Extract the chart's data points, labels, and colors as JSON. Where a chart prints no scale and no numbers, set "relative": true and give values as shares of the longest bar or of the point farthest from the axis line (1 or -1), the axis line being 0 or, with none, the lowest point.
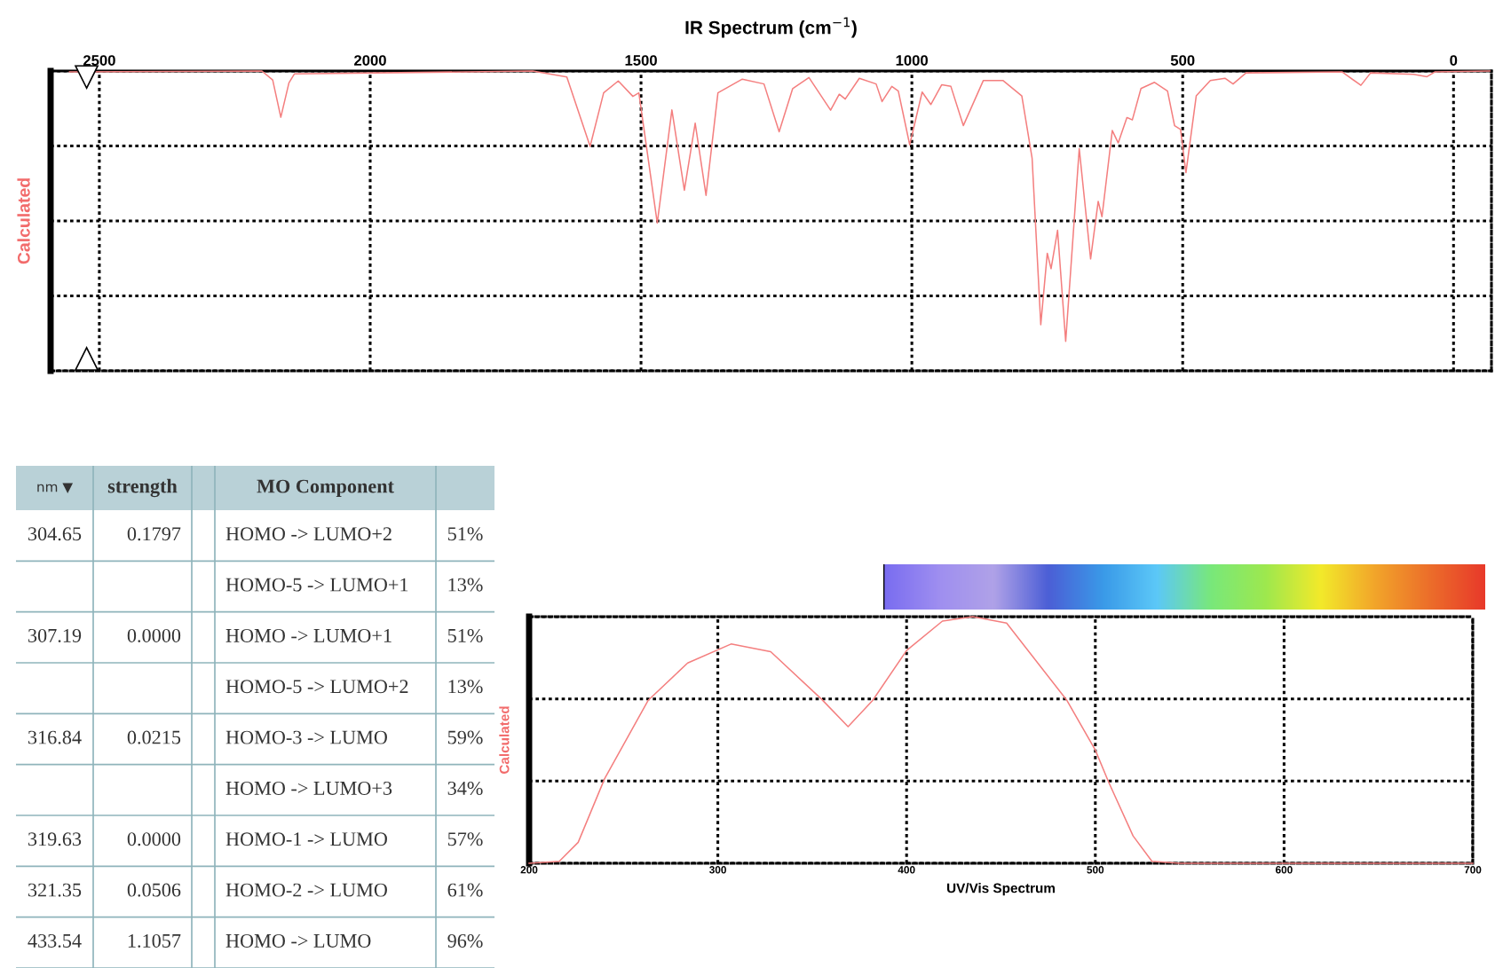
{
  "chart_data": [
    {
      "type": "line",
      "title": "IR Spectrum (cm$^{−1}$)",
      "ylabel": "Calculated",
      "relative": true,
      "grid": true,
      "tick_labels": "x",
      "xlim": [
        2590,
        -70
      ],
      "xticks": [
        2500,
        2000,
        1500,
        1000,
        500,
        0
      ],
      "x": [
        2555,
        2200,
        2180,
        2165,
        2150,
        2140,
        1700,
        1637,
        1594,
        1569,
        1542,
        1515,
        1504,
        1470,
        1443,
        1420,
        1400,
        1380,
        1358,
        1313,
        1273,
        1245,
        1220,
        1190,
        1150,
        1134,
        1123,
        1097,
        1066,
        1055,
        1037,
        1025,
        1004,
        981,
        965,
        945,
        928,
        905,
        868,
        832,
        797,
        778,
        762,
        750,
        743,
        731,
        716,
        691,
        670,
        656,
        649,
        630,
        619,
        603,
        593,
        577,
        552,
        528,
        515,
        504,
        494,
        475,
        449,
        422,
        407,
        383,
        206,
        171,
        153,
        74,
        49,
        34,
        -67
      ],
      "series": [
        {
          "color": "#f47f7f",
          "values": [
            -0.003,
            0,
            -0.033,
            -0.171,
            -0.044,
            -0.011,
            0,
            -0.022,
            -0.279,
            -0.081,
            -0.037,
            -0.094,
            -0.081,
            -0.562,
            -0.144,
            -0.441,
            -0.193,
            -0.46,
            -0.081,
            -0.03,
            -0.048,
            -0.225,
            -0.065,
            -0.024,
            -0.145,
            -0.086,
            -0.104,
            -0.027,
            -0.048,
            -0.113,
            -0.057,
            -0.074,
            -0.273,
            -0.078,
            -0.124,
            -0.051,
            -0.057,
            -0.202,
            -0.035,
            -0.035,
            -0.092,
            -0.323,
            -0.938,
            -0.674,
            -0.731,
            -0.589,
            -1.0,
            -0.287,
            -0.695,
            -0.482,
            -0.539,
            -0.22,
            -0.266,
            -0.172,
            -0.181,
            -0.065,
            -0.042,
            -0.074,
            -0.202,
            -0.216,
            -0.376,
            -0.092,
            -0.035,
            -0.027,
            -0.048,
            -0.007,
            -0.003,
            -0.053,
            -0.007,
            -0.012,
            -0.021,
            -0.003,
            0
          ]
        }
      ]
    },
    {
      "type": "other",
      "categories": [
        "nm ▼",
        "strength",
        null,
        "MO Component",
        null
      ],
      "cell_labels": [
        [
          "304.65",
          "0.1797",
          null,
          "HOMO -> LUMO+2",
          "51%"
        ],
        [
          null,
          null,
          null,
          "HOMO-5 -> LUMO+1",
          "13%"
        ],
        [
          "307.19",
          "0.0000",
          null,
          "HOMO -> LUMO+1",
          "51%"
        ],
        [
          null,
          null,
          null,
          "HOMO-5 -> LUMO+2",
          "13%"
        ],
        [
          "316.84",
          "0.0215",
          null,
          "HOMO-3 -> LUMO",
          "59%"
        ],
        [
          null,
          null,
          null,
          "HOMO -> LUMO+3",
          "34%"
        ],
        [
          "319.63",
          "0.0000",
          null,
          "HOMO-1 -> LUMO",
          "57%"
        ],
        [
          "321.35",
          "0.0506",
          null,
          "HOMO-2 -> LUMO",
          "61%"
        ],
        [
          "433.54",
          "1.1057",
          null,
          "HOMO -> LUMO",
          "96%"
        ]
      ]
    },
    {
      "type": "line",
      "xlabel": "UV/Vis Spectrum",
      "ylabel": "Calculated",
      "relative": true,
      "grid": true,
      "tick_labels": "x",
      "xlim": [
        200,
        700
      ],
      "xticks": [
        200,
        300,
        400,
        500,
        600,
        700
      ],
      "x": [
        200,
        216,
        226,
        240,
        263,
        284,
        307,
        328,
        355,
        369,
        382,
        400,
        419,
        435,
        453,
        485,
        500,
        507,
        520,
        530,
        545,
        700
      ],
      "series": [
        {
          "color": "#f47f7f",
          "values": [
            0,
            0.008,
            0.085,
            0.343,
            0.66,
            0.812,
            0.889,
            0.858,
            0.665,
            0.554,
            0.66,
            0.863,
            0.982,
            1.0,
            0.974,
            0.66,
            0.459,
            0.33,
            0.111,
            0.008,
            0,
            0
          ]
        }
      ]
    }
  ]
}
